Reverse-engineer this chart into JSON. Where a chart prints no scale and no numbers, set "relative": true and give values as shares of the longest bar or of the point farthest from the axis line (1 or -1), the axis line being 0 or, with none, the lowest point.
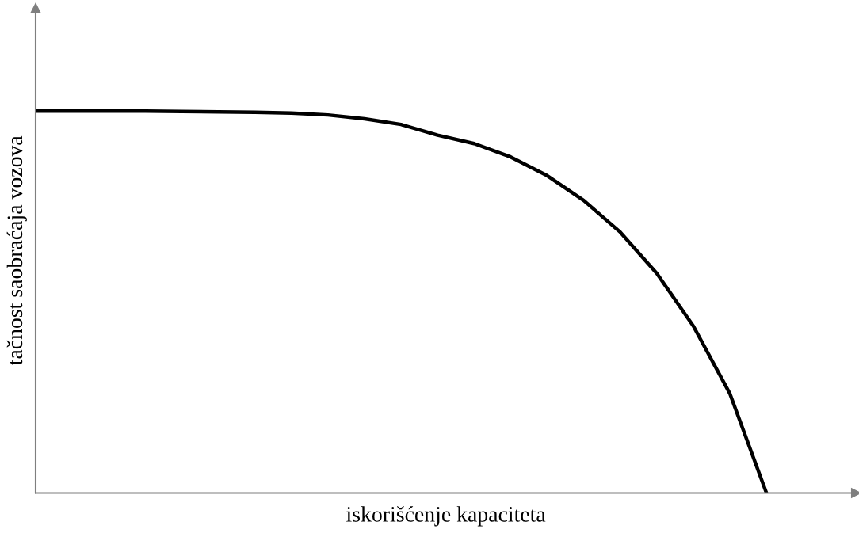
{
  "chart_data": {
    "type": "line",
    "relative": true,
    "xlabel": "iskorišćenje kapaciteta",
    "ylabel": "tačnost saobraćaja vozova",
    "categories": [
      null,
      null,
      null,
      null,
      null,
      null,
      null,
      null,
      null,
      null,
      null,
      null,
      null,
      null,
      null,
      null,
      null,
      null,
      null,
      null,
      null,
      null,
      null
    ],
    "series": [
      {
        "color": "#000000",
        "values": [
          1,
          1,
          1,
          1,
          0.999,
          0.998,
          0.997,
          0.995,
          0.99,
          0.98,
          0.965,
          0.937,
          0.915,
          0.88,
          0.831,
          0.766,
          0.683,
          0.575,
          0.437,
          0.26,
          0,
          null,
          null
        ]
      }
    ],
    "grid": false,
    "legend": false,
    "tick_labels": false
  }
}
